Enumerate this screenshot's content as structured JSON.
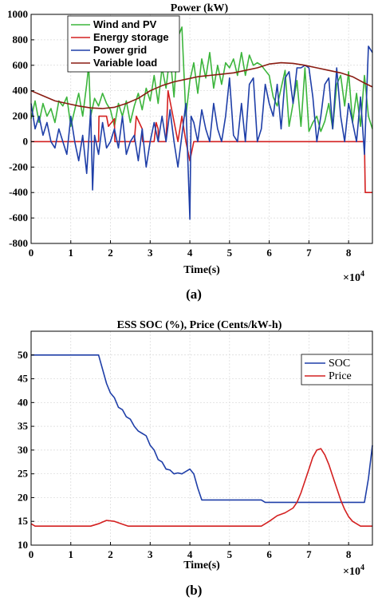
{
  "chart_data": [
    {
      "type": "line",
      "title": "Power  (kW)",
      "xlabel": "Time(s)",
      "ylabel": "",
      "x_multiplier": "×10",
      "x_multiplier_exp": "4",
      "caption": "(a)",
      "xlim": [
        0,
        86000
      ],
      "ylim": [
        -800,
        1000
      ],
      "xticks": [
        0,
        10000,
        20000,
        30000,
        40000,
        50000,
        60000,
        70000,
        80000
      ],
      "xtick_labels": [
        "0",
        "1",
        "2",
        "3",
        "4",
        "5",
        "6",
        "7",
        "8"
      ],
      "yticks": [
        -800,
        -600,
        -400,
        -200,
        0,
        200,
        400,
        600,
        800,
        1000
      ],
      "ytick_labels": [
        "-800",
        "-600",
        "-400",
        "-200",
        "0",
        "200",
        "400",
        "600",
        "800",
        "1000"
      ],
      "grid": true,
      "legend_position": "top-left",
      "series": [
        {
          "name": "Wind and PV",
          "color": "#3cb53c",
          "x": [
            0,
            1000,
            2000,
            3000,
            4000,
            5000,
            6000,
            7000,
            8000,
            9000,
            10000,
            11000,
            12000,
            13000,
            14000,
            14500,
            15000,
            16000,
            17000,
            18000,
            19000,
            20000,
            21000,
            22000,
            23000,
            24000,
            25000,
            26000,
            27000,
            28000,
            29000,
            30000,
            31000,
            32000,
            33000,
            34000,
            35000,
            36000,
            37000,
            38000,
            39000,
            40000,
            41000,
            42000,
            43000,
            44000,
            45000,
            46000,
            47000,
            48000,
            49000,
            50000,
            51000,
            52000,
            53000,
            54000,
            55000,
            56000,
            57000,
            58000,
            59000,
            60000,
            61000,
            62000,
            63000,
            64000,
            65000,
            66000,
            67000,
            68000,
            69000,
            70000,
            71000,
            72000,
            73000,
            74000,
            75000,
            76000,
            77000,
            78000,
            79000,
            80000,
            81000,
            82000,
            83000,
            84000,
            85000,
            86000
          ],
          "values": [
            180,
            320,
            150,
            300,
            200,
            260,
            150,
            320,
            280,
            350,
            120,
            250,
            380,
            200,
            450,
            600,
            200,
            340,
            280,
            380,
            300,
            250,
            120,
            300,
            200,
            320,
            150,
            280,
            380,
            250,
            420,
            320,
            520,
            300,
            580,
            420,
            680,
            350,
            820,
            900,
            200,
            480,
            620,
            380,
            650,
            500,
            700,
            420,
            600,
            450,
            620,
            580,
            650,
            520,
            700,
            520,
            680,
            600,
            620,
            600,
            560,
            520,
            350,
            280,
            420,
            560,
            120,
            300,
            480,
            120,
            580,
            80,
            150,
            200,
            80,
            160,
            300,
            100,
            450,
            520,
            280,
            550,
            150,
            380,
            120,
            520,
            200,
            100
          ]
        },
        {
          "name": "Energy storage",
          "color": "#d42020",
          "x": [
            0,
            17000,
            17100,
            19000,
            19500,
            21000,
            21100,
            26000,
            26500,
            28000,
            28100,
            31000,
            31500,
            32000,
            32100,
            34000,
            34500,
            37000,
            38000,
            39000,
            40000,
            41000,
            41100,
            84000,
            84200,
            86000
          ],
          "values": [
            0,
            0,
            200,
            200,
            120,
            180,
            0,
            0,
            200,
            100,
            0,
            0,
            150,
            100,
            0,
            0,
            400,
            0,
            200,
            0,
            -150,
            0,
            0,
            0,
            -400,
            -400
          ]
        },
        {
          "name": "Power grid",
          "color": "#1f3fa8",
          "x": [
            0,
            1000,
            2000,
            3000,
            4000,
            5000,
            6000,
            7000,
            8000,
            9000,
            10000,
            11000,
            12000,
            13000,
            14000,
            15000,
            15500,
            16000,
            17000,
            18000,
            19000,
            20000,
            21000,
            22000,
            23000,
            24000,
            25000,
            26000,
            27000,
            28000,
            29000,
            30000,
            31000,
            32000,
            33000,
            34000,
            35000,
            36000,
            37000,
            38000,
            39000,
            40000,
            40300,
            41000,
            42000,
            43000,
            44000,
            45000,
            46000,
            47000,
            48000,
            49000,
            50000,
            51000,
            52000,
            53000,
            54000,
            55000,
            56000,
            57000,
            58000,
            59000,
            60000,
            61000,
            62000,
            63000,
            64000,
            65000,
            66000,
            67000,
            68000,
            69000,
            70000,
            71000,
            72000,
            73000,
            74000,
            75000,
            76000,
            77000,
            78000,
            79000,
            80000,
            81000,
            82000,
            83000,
            84000,
            85000,
            86000
          ],
          "values": [
            300,
            100,
            200,
            50,
            150,
            0,
            -50,
            100,
            0,
            -100,
            200,
            0,
            -150,
            50,
            -250,
            250,
            -380,
            50,
            -100,
            150,
            -50,
            0,
            100,
            -50,
            200,
            -100,
            0,
            50,
            -150,
            100,
            -200,
            0,
            150,
            0,
            200,
            0,
            250,
            0,
            -200,
            50,
            300,
            -610,
            200,
            150,
            0,
            250,
            100,
            0,
            300,
            100,
            0,
            200,
            500,
            50,
            0,
            300,
            0,
            450,
            500,
            0,
            100,
            450,
            300,
            200,
            450,
            100,
            500,
            550,
            300,
            580,
            580,
            600,
            580,
            350,
            0,
            200,
            450,
            500,
            100,
            580,
            200,
            0,
            300,
            150,
            0,
            350,
            -100,
            750,
            700
          ]
        },
        {
          "name": "Variable load",
          "color": "#8a1c12",
          "x": [
            0,
            3000,
            6000,
            9000,
            12000,
            15000,
            18000,
            21000,
            24000,
            27000,
            30000,
            33000,
            36000,
            39000,
            42000,
            45000,
            48000,
            51000,
            54000,
            57000,
            60000,
            63000,
            66000,
            69000,
            72000,
            75000,
            78000,
            81000,
            84000,
            86000
          ],
          "values": [
            400,
            360,
            320,
            300,
            280,
            265,
            260,
            270,
            300,
            340,
            400,
            440,
            470,
            490,
            510,
            520,
            530,
            540,
            560,
            580,
            610,
            620,
            615,
            600,
            580,
            560,
            540,
            510,
            460,
            430
          ]
        }
      ]
    },
    {
      "type": "line",
      "title": "ESS SOC (%), Price (Cents/kW-h)",
      "xlabel": "Time(s)",
      "ylabel": "",
      "x_multiplier": "×10",
      "x_multiplier_exp": "4",
      "caption": "(b)",
      "xlim": [
        0,
        86000
      ],
      "ylim": [
        10,
        55
      ],
      "xticks": [
        0,
        10000,
        20000,
        30000,
        40000,
        50000,
        60000,
        70000,
        80000
      ],
      "xtick_labels": [
        "0",
        "1",
        "2",
        "3",
        "4",
        "5",
        "6",
        "7",
        "8"
      ],
      "yticks": [
        10,
        15,
        20,
        25,
        30,
        35,
        40,
        45,
        50
      ],
      "ytick_labels": [
        "10",
        "15",
        "20",
        "25",
        "30",
        "35",
        "40",
        "45",
        "50"
      ],
      "grid": true,
      "legend_position": "top-right",
      "series": [
        {
          "name": "SOC",
          "color": "#1f3fa8",
          "x": [
            0,
            17000,
            18000,
            19000,
            20000,
            21000,
            22000,
            23000,
            24000,
            25000,
            26000,
            27000,
            28000,
            29000,
            30000,
            31000,
            32000,
            33000,
            34000,
            35000,
            36000,
            37000,
            38000,
            39000,
            40000,
            41000,
            42000,
            43000,
            58000,
            59000,
            84000,
            85000,
            86000
          ],
          "values": [
            50,
            50,
            47,
            44,
            42,
            41,
            39,
            38.5,
            37,
            36.5,
            35,
            34,
            33.5,
            33,
            31,
            30,
            28,
            27.5,
            26,
            25.8,
            25,
            25.2,
            25,
            25.5,
            26,
            25,
            22,
            19.5,
            19.5,
            19,
            19,
            24,
            31
          ]
        },
        {
          "name": "Price",
          "color": "#d42020",
          "x": [
            0,
            1000,
            15000,
            17000,
            19000,
            21000,
            23000,
            24500,
            58000,
            60000,
            62000,
            64000,
            66000,
            67000,
            68000,
            69000,
            70000,
            71000,
            72000,
            73000,
            74000,
            75000,
            76000,
            77000,
            78000,
            79000,
            80000,
            81000,
            82000,
            83000,
            84000,
            86000
          ],
          "values": [
            14.5,
            14,
            14,
            14.5,
            15.2,
            15,
            14.4,
            14,
            14,
            15,
            16.2,
            16.8,
            17.8,
            19,
            21,
            23.5,
            26,
            28.5,
            30,
            30.3,
            29,
            27,
            24.5,
            22,
            19.5,
            17.5,
            16,
            15,
            14.5,
            14,
            14,
            14
          ]
        }
      ]
    }
  ]
}
